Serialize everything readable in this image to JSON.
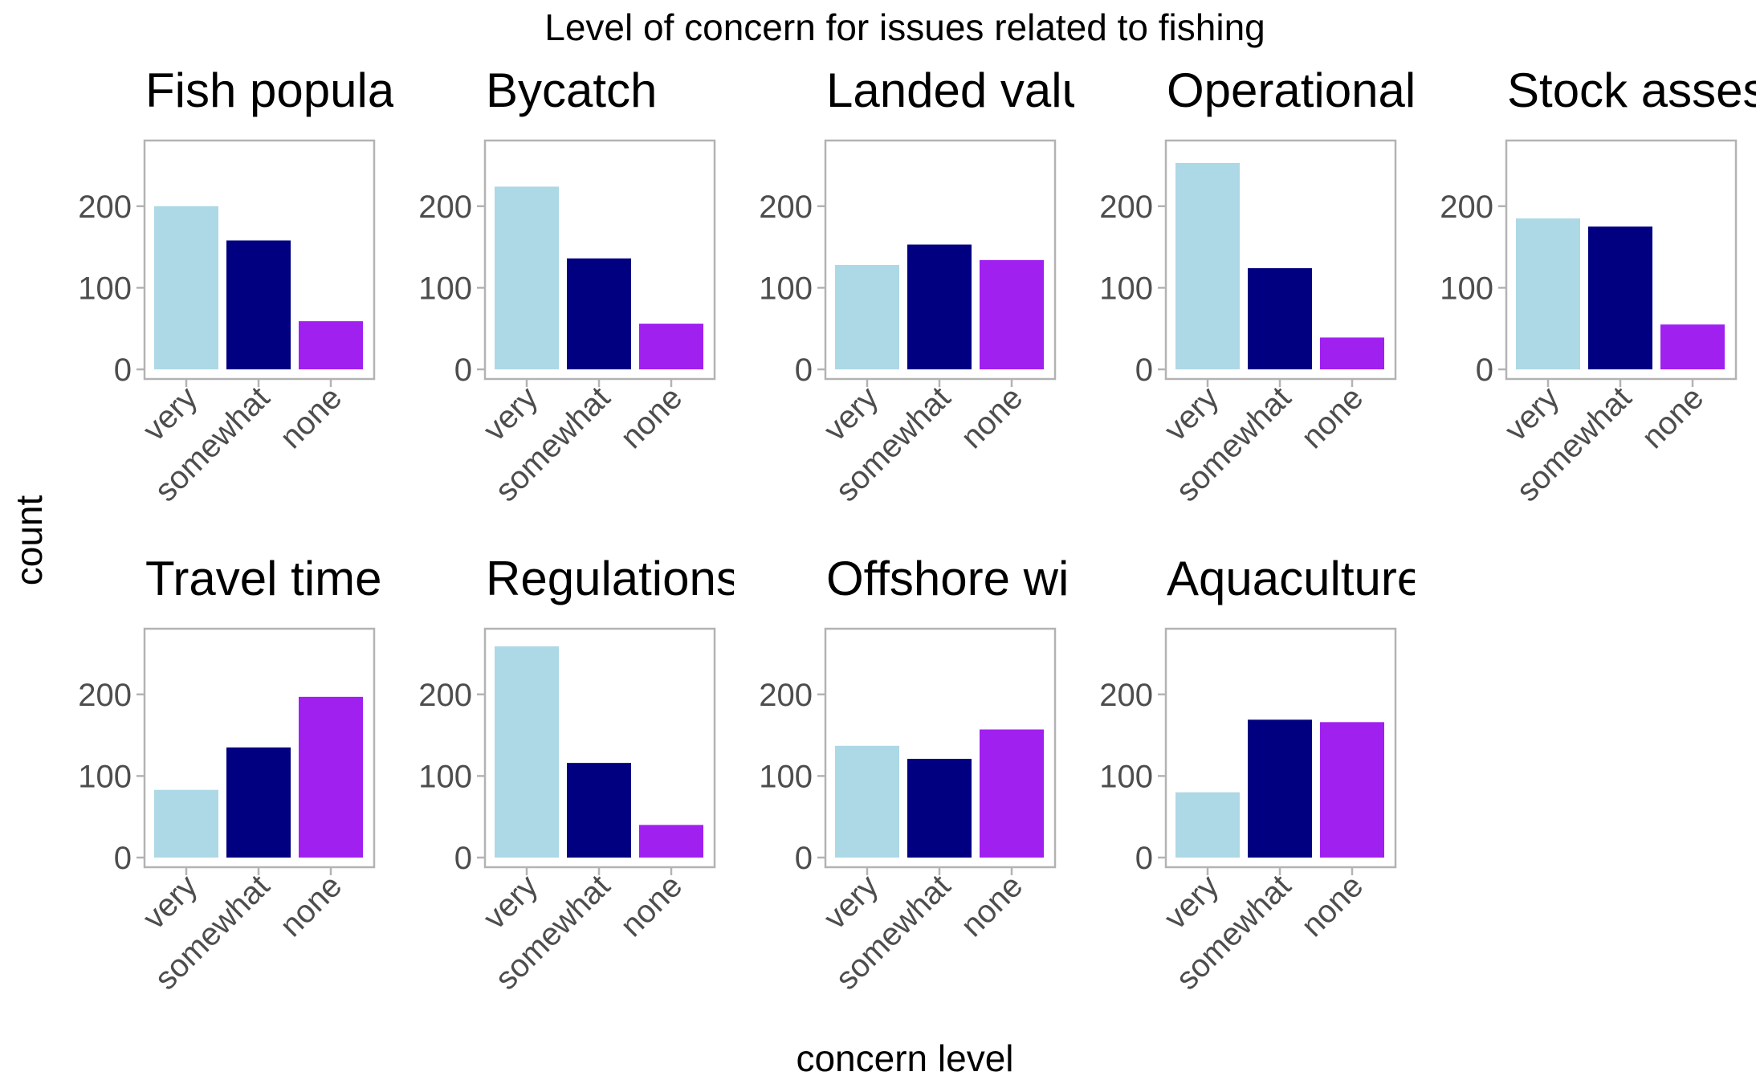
{
  "chart_data": {
    "type": "bar",
    "title": "Level of concern for issues related to fishing",
    "xlabel": "concern level",
    "ylabel": "count",
    "ylim": [
      0,
      280
    ],
    "yticks": [
      0,
      100,
      200
    ],
    "categories": [
      "very",
      "somewhat",
      "none"
    ],
    "colors": [
      "#add8e6",
      "#000080",
      "#a020f0"
    ],
    "facets": [
      {
        "title": "Fish popula",
        "values": [
          200,
          158,
          59
        ]
      },
      {
        "title": "Bycatch",
        "values": [
          224,
          136,
          56
        ]
      },
      {
        "title": "Landed valu",
        "values": [
          128,
          153,
          134
        ]
      },
      {
        "title": "Operational",
        "values": [
          253,
          124,
          39
        ]
      },
      {
        "title": "Stock asses",
        "values": [
          185,
          175,
          55
        ]
      },
      {
        "title": "Travel time",
        "values": [
          83,
          135,
          197
        ]
      },
      {
        "title": "Regulations",
        "values": [
          259,
          116,
          40
        ]
      },
      {
        "title": "Offshore wi",
        "values": [
          137,
          121,
          157
        ]
      },
      {
        "title": "Aquaculture",
        "values": [
          80,
          169,
          166
        ]
      }
    ]
  }
}
